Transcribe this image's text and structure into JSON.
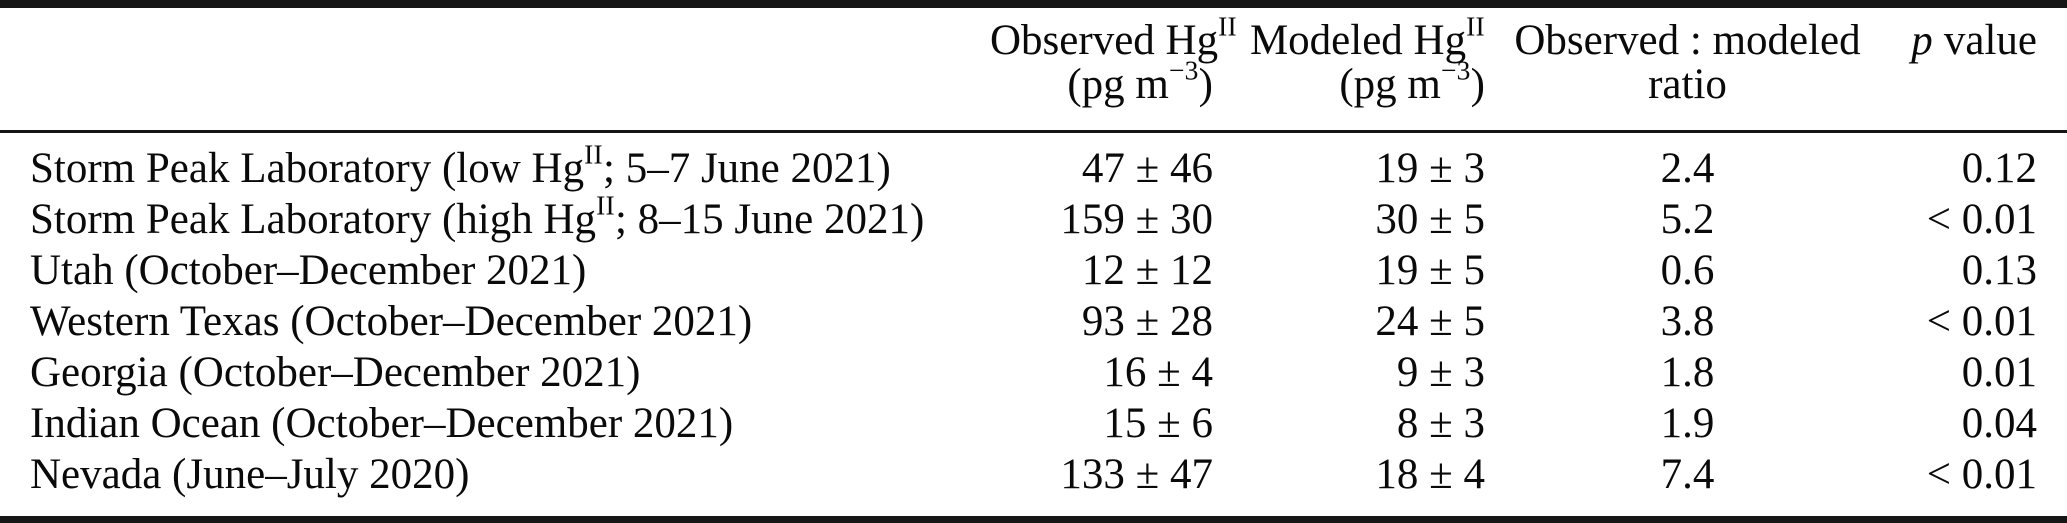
{
  "table": {
    "title_semantic": "Observed versus modeled HgII concentrations by site",
    "header": {
      "site": "",
      "observed": {
        "line1": "Observed Hg",
        "line1_sup": "II",
        "line2_open": "(pg m",
        "line2_sup": "−3",
        "line2_close": ")"
      },
      "modeled": {
        "line1": "Modeled Hg",
        "line1_sup": "II",
        "line2_open": "(pg m",
        "line2_sup": "−3",
        "line2_close": ")"
      },
      "ratio": {
        "line1": "Observed : modeled",
        "line2": "ratio"
      },
      "p": {
        "italic": "p",
        "rest": "value"
      }
    },
    "rows": [
      {
        "site_pre": "Storm Peak Laboratory (low Hg",
        "site_sup": "II",
        "site_post": "; 5–7 June 2021)",
        "observed": "47 ± 46",
        "modeled": "19 ± 3",
        "ratio": "2.4",
        "p_value": "0.12"
      },
      {
        "site_pre": "Storm Peak Laboratory (high Hg",
        "site_sup": "II",
        "site_post": "; 8–15 June 2021)",
        "observed": "159 ± 30",
        "modeled": "30 ± 5",
        "ratio": "5.2",
        "p_value": "< 0.01"
      },
      {
        "site_pre": "Utah (October–December 2021)",
        "site_sup": "",
        "site_post": "",
        "observed": "12 ± 12",
        "modeled": "19 ± 5",
        "ratio": "0.6",
        "p_value": "0.13"
      },
      {
        "site_pre": "Western Texas (October–December 2021)",
        "site_sup": "",
        "site_post": "",
        "observed": "93 ± 28",
        "modeled": "24 ± 5",
        "ratio": "3.8",
        "p_value": "< 0.01"
      },
      {
        "site_pre": "Georgia (October–December 2021)",
        "site_sup": "",
        "site_post": "",
        "observed": "16 ± 4",
        "modeled": "9 ± 3",
        "ratio": "1.8",
        "p_value": "0.01"
      },
      {
        "site_pre": "Indian Ocean (October–December 2021)",
        "site_sup": "",
        "site_post": "",
        "observed": "15 ± 6",
        "modeled": "8 ± 3",
        "ratio": "1.9",
        "p_value": "0.04"
      },
      {
        "site_pre": "Nevada (June–July 2020)",
        "site_sup": "",
        "site_post": "",
        "observed": "133 ± 47",
        "modeled": "18 ± 4",
        "ratio": "7.4",
        "p_value": "< 0.01"
      }
    ]
  }
}
